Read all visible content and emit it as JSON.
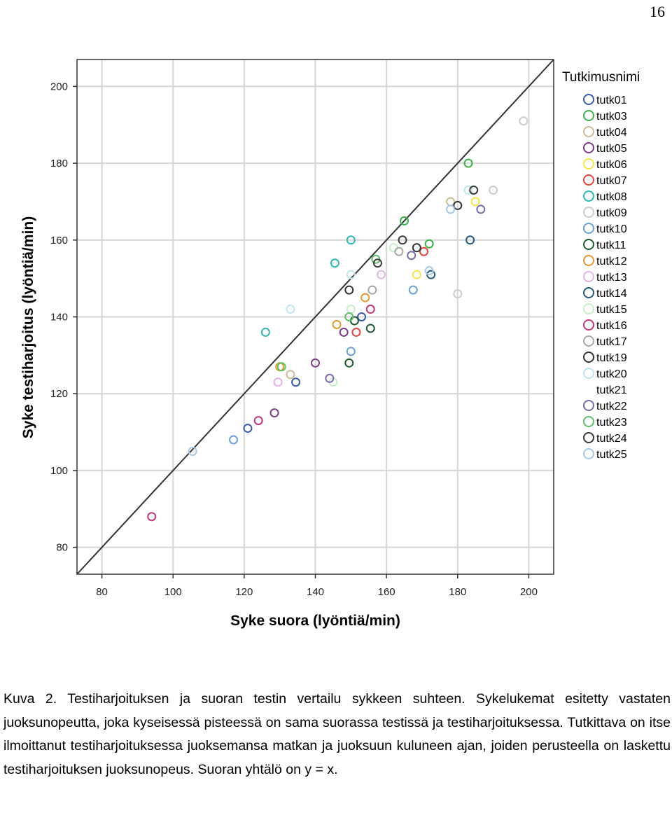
{
  "page_number": "16",
  "caption": "Kuva 2. Testiharjoituksen ja suoran testin vertailu sykkeen suhteen. Sykelukemat esitetty vastaten juoksunopeutta, joka kyseisessä pisteessä on sama suorassa testissä ja testiharjoituksessa. Tutkittava on itse ilmoittanut testiharjoituksessa juoksemansa matkan ja juoksuun kuluneen ajan, joiden perusteella on laskettu testiharjoituksen juoksunopeus. Suoran yhtälö on y = x.",
  "chart_data": {
    "type": "scatter",
    "title": "",
    "xlabel": "Syke suora (lyöntiä/min)",
    "ylabel": "Syke testiharjoitus (lyöntiä/min)",
    "xlim": [
      73,
      207
    ],
    "ylim": [
      73,
      207
    ],
    "x_ticks": [
      80,
      100,
      120,
      140,
      160,
      180,
      200
    ],
    "y_ticks": [
      80,
      100,
      120,
      140,
      160,
      180,
      200
    ],
    "grid": true,
    "legend_title": "Tutkimusnimi",
    "legend_position": "right",
    "reference_line": "y = x",
    "series": [
      {
        "name": "tutk01",
        "color": "#3a5ba8",
        "points": [
          [
            121,
            111
          ],
          [
            134.5,
            123
          ],
          [
            153,
            140
          ]
        ]
      },
      {
        "name": "tutk03",
        "color": "#3cb24a",
        "points": [
          [
            183,
            180
          ],
          [
            165,
            165
          ],
          [
            172,
            159
          ]
        ]
      },
      {
        "name": "tutk04",
        "color": "#c8bd97",
        "points": [
          [
            178,
            170
          ],
          [
            133,
            125
          ]
        ]
      },
      {
        "name": "tutk05",
        "color": "#7b3c84",
        "points": [
          [
            128.5,
            115
          ],
          [
            140,
            128
          ],
          [
            148,
            136
          ]
        ]
      },
      {
        "name": "tutk06",
        "color": "#f2e84a",
        "points": [
          [
            185,
            170
          ],
          [
            168.5,
            151
          ]
        ]
      },
      {
        "name": "tutk07",
        "color": "#e8453c",
        "points": [
          [
            151.5,
            136
          ],
          [
            170.5,
            157
          ]
        ]
      },
      {
        "name": "tutk08",
        "color": "#2fb7b3",
        "points": [
          [
            126,
            136
          ],
          [
            150,
            160
          ],
          [
            145.5,
            154
          ]
        ]
      },
      {
        "name": "tutk09",
        "color": "#cccccc",
        "points": [
          [
            198.5,
            191
          ],
          [
            190,
            173
          ],
          [
            180,
            146
          ]
        ]
      },
      {
        "name": "tutk10",
        "color": "#6aa0d3",
        "points": [
          [
            117,
            108
          ],
          [
            167.5,
            147
          ],
          [
            150,
            131
          ]
        ]
      },
      {
        "name": "tutk11",
        "color": "#1f5b32",
        "points": [
          [
            149.5,
            128
          ],
          [
            155.5,
            137
          ],
          [
            151,
            139
          ]
        ]
      },
      {
        "name": "tutk12",
        "color": "#e29a32",
        "points": [
          [
            130,
            127
          ],
          [
            146,
            138
          ],
          [
            154,
            145
          ]
        ]
      },
      {
        "name": "tutk13",
        "color": "#e3b3e5",
        "points": [
          [
            129.5,
            123
          ],
          [
            158.5,
            151
          ]
        ]
      },
      {
        "name": "tutk14",
        "color": "#24587a",
        "points": [
          [
            183.5,
            160
          ],
          [
            172.5,
            151
          ]
        ]
      },
      {
        "name": "tutk15",
        "color": "#c9eec9",
        "points": [
          [
            162,
            158
          ],
          [
            145,
            123
          ],
          [
            150,
            142
          ]
        ]
      },
      {
        "name": "tutk16",
        "color": "#c0377a",
        "points": [
          [
            94,
            88
          ],
          [
            124,
            113
          ],
          [
            155.5,
            142
          ]
        ]
      },
      {
        "name": "tutk17",
        "color": "#a8a8a8",
        "points": [
          [
            156,
            147
          ],
          [
            163.5,
            157
          ]
        ]
      },
      {
        "name": "tutk19",
        "color": "#333333",
        "points": [
          [
            149.5,
            147
          ],
          [
            168.5,
            158
          ],
          [
            180,
            169
          ]
        ]
      },
      {
        "name": "tutk20",
        "color": "#bfe6ec",
        "points": [
          [
            133,
            142
          ],
          [
            150,
            151
          ],
          [
            183,
            173
          ]
        ]
      },
      {
        "name": "tutk21",
        "color": "#ffffff",
        "points": []
      },
      {
        "name": "tutk22",
        "color": "#7d6aa8",
        "points": [
          [
            144,
            124
          ],
          [
            167,
            156
          ],
          [
            186.5,
            168
          ]
        ]
      },
      {
        "name": "tutk23",
        "color": "#5fbf6a",
        "points": [
          [
            130.5,
            127
          ],
          [
            149.5,
            140
          ],
          [
            157,
            155
          ]
        ]
      },
      {
        "name": "tutk24",
        "color": "#3a3a3a",
        "points": [
          [
            164.5,
            160
          ],
          [
            184.5,
            173
          ],
          [
            157.5,
            154
          ]
        ]
      },
      {
        "name": "tutk25",
        "color": "#a7c8e6",
        "points": [
          [
            105.5,
            105
          ],
          [
            172,
            152
          ],
          [
            178,
            168
          ]
        ]
      }
    ]
  }
}
